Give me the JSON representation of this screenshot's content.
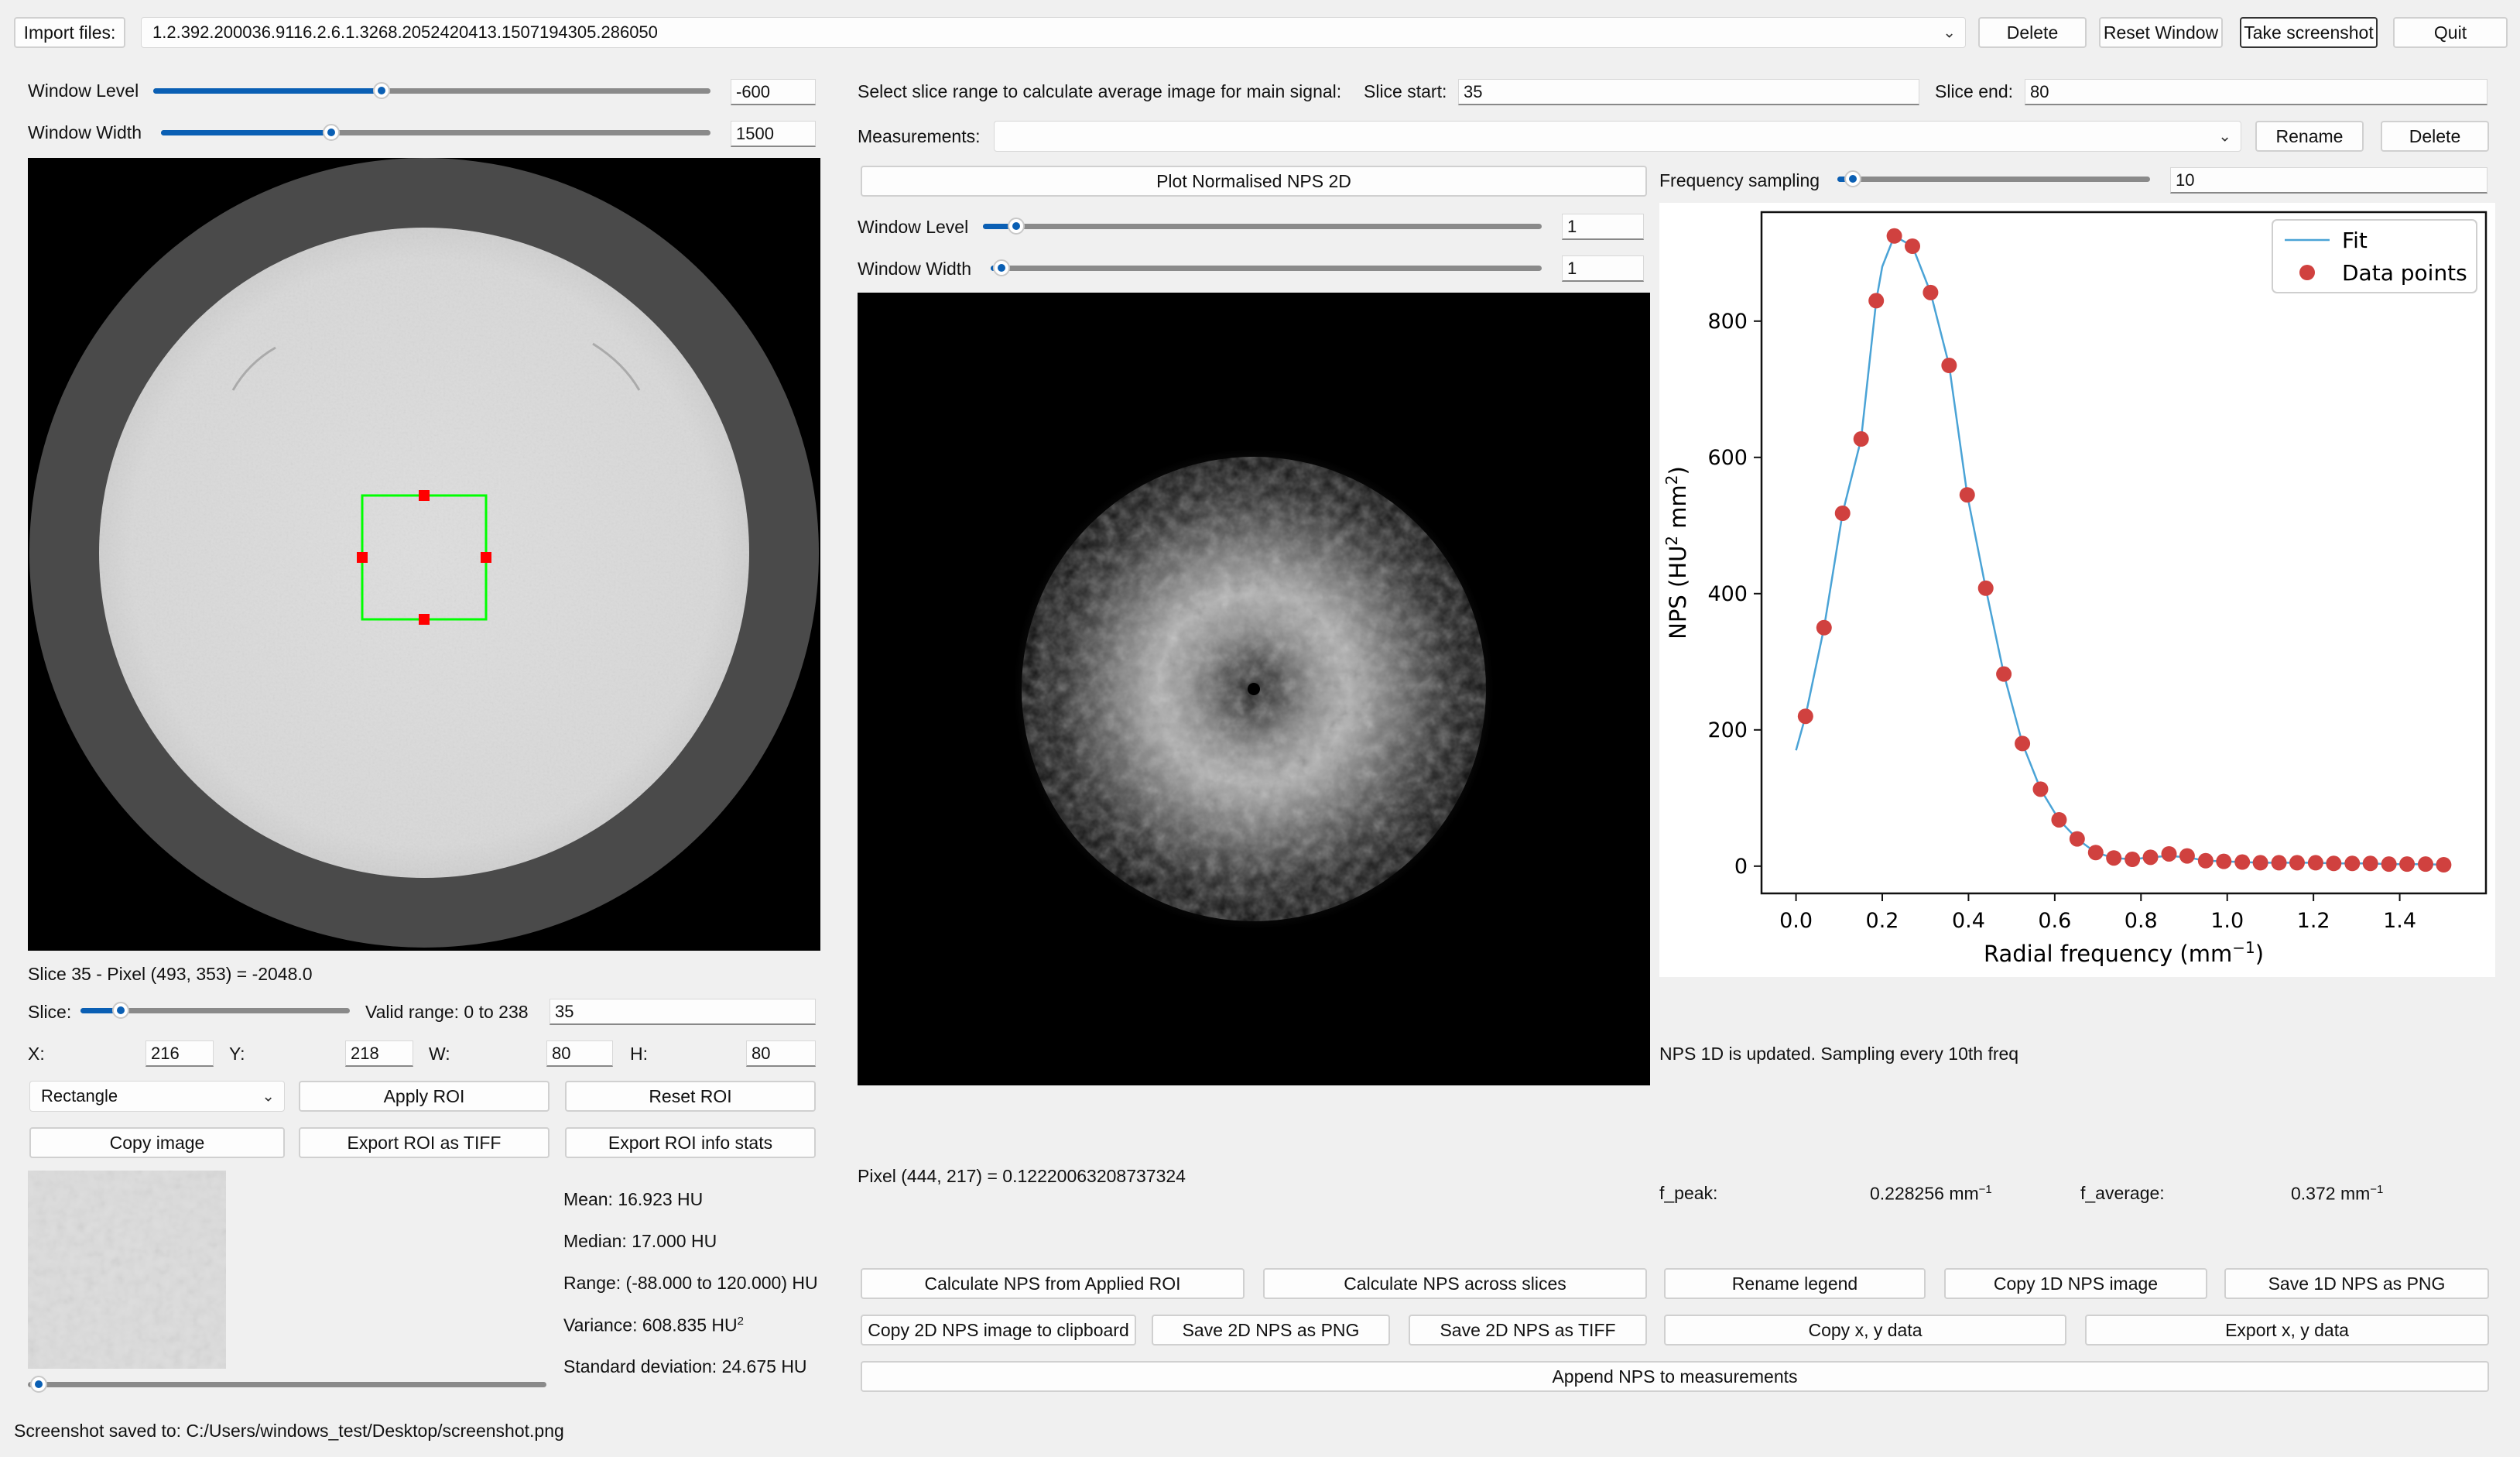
{
  "import": {
    "label": "Import files:",
    "file_value": "1.2.392.200036.9116.2.6.1.3268.2052420413.1507194305.286050"
  },
  "top_buttons": {
    "delete": "Delete",
    "reset_window": "Reset Window",
    "take_screenshot": "Take screenshot",
    "quit": "Quit"
  },
  "left": {
    "window_level_label": "Window Level",
    "window_level_value": "-600",
    "window_level_fraction": 0.41,
    "window_width_label": "Window Width",
    "window_width_value": "1500",
    "window_width_fraction": 0.31,
    "pixel_info": "Slice 35 - Pixel (493, 353) = -2048.0",
    "slice_label": "Slice:",
    "slice_fraction": 0.15,
    "valid_range": "Valid range: 0 to 238",
    "slice_value": "35",
    "x_label": "X:",
    "x_value": "216",
    "y_label": "Y:",
    "y_value": "218",
    "w_label": "W:",
    "w_value": "80",
    "h_label": "H:",
    "h_value": "80",
    "roi_shape": "Rectangle",
    "apply_roi": "Apply ROI",
    "reset_roi": "Reset ROI",
    "copy_image": "Copy image",
    "export_roi_tiff": "Export ROI as TIFF",
    "export_roi_info": "Export ROI info  stats",
    "stats": {
      "mean": "Mean: 16.923 HU",
      "median": "Median: 17.000 HU",
      "range": "Range: (-88.000 to 120.000) HU",
      "variance": "Variance: 608.835 HU",
      "variance_sup": "2",
      "std": "Standard deviation: 24.675 HU"
    }
  },
  "middle": {
    "slice_range_label": "Select slice range to calculate average image for main signal:",
    "slice_start_label": "Slice start:",
    "slice_start_value": "35",
    "slice_end_label": "Slice end:",
    "slice_end_value": "80",
    "measurements_label": "Measurements:",
    "measurements_value": "",
    "rename": "Rename",
    "delete": "Delete",
    "plot_nps_2d": "Plot Normalised NPS 2D",
    "window_level_label": "Window Level",
    "window_level_value": "1",
    "window_level_fraction": 0.06,
    "window_width_label": "Window Width",
    "window_width_value": "1",
    "window_width_fraction": 0.02,
    "pixel_info": "Pixel (444, 217) = 0.12220063208737324"
  },
  "right": {
    "frequency_sampling_label": "Frequency sampling",
    "frequency_sampling_value": "10",
    "frequency_sampling_fraction": 0.05,
    "status": "NPS 1D is updated. Sampling every 10th freq",
    "f_peak_label": "f_peak:",
    "f_peak_value": "0.228256 mm",
    "f_average_label": "f_average:",
    "f_average_value": "0.372 mm",
    "unit_sup": "−1"
  },
  "bottom_buttons": {
    "calc_applied_roi": "Calculate NPS from Applied ROI",
    "calc_across_slices": "Calculate NPS across slices",
    "rename_legend": "Rename legend",
    "copy_1d_image": "Copy 1D NPS image",
    "save_1d_png": "Save 1D NPS as PNG",
    "copy_2d_clipboard": "Copy 2D NPS image to clipboard",
    "save_2d_png": "Save 2D NPS as PNG",
    "save_2d_tiff": "Save 2D NPS as TIFF",
    "copy_xy": "Copy x, y data",
    "export_xy": "Export x, y data",
    "append_nps": "Append NPS to measurements"
  },
  "status_bar": "Screenshot saved to: C:/Users/windows_test/Desktop/screenshot.png",
  "colors": {
    "accent": "#0a5fb4",
    "fit_line": "#4aa3d6",
    "data_points": "#d0413f",
    "roi_box": "#00ff00",
    "roi_handles": "#ff0000"
  },
  "chart_data": {
    "type": "line",
    "xlabel_main": "Radial frequency (mm",
    "xlabel_sup": "−1",
    "xlabel_end": ")",
    "ylabel_main": "NPS (HU",
    "ylabel_sup": "2",
    "ylabel_mid": " mm",
    "ylabel_sup2": "2",
    "ylabel_end": ")",
    "xlim": [
      -0.08,
      1.6
    ],
    "ylim": [
      -40,
      960
    ],
    "xticks": [
      0.0,
      0.2,
      0.4,
      0.6,
      0.8,
      1.0,
      1.2,
      1.4
    ],
    "xtick_labels": [
      "0.0",
      "0.2",
      "0.4",
      "0.6",
      "0.8",
      "1.0",
      "1.2",
      "1.4"
    ],
    "yticks": [
      0,
      200,
      400,
      600,
      800
    ],
    "ytick_labels": [
      "0",
      "200",
      "400",
      "600",
      "800"
    ],
    "legend_position": "top-right",
    "series": [
      {
        "name": "Fit",
        "kind": "line",
        "x": [
          0.0,
          0.022,
          0.065,
          0.108,
          0.151,
          0.186,
          0.2,
          0.228,
          0.27,
          0.312,
          0.355,
          0.397,
          0.44,
          0.482,
          0.525,
          0.567,
          0.61,
          0.652,
          0.695,
          0.737,
          0.78,
          0.822,
          0.865,
          0.907,
          0.95,
          0.992,
          1.035,
          1.077,
          1.12,
          1.162,
          1.205,
          1.247,
          1.29,
          1.332,
          1.375,
          1.417,
          1.46,
          1.502
        ],
        "y": [
          170,
          220,
          350,
          518,
          627,
          830,
          880,
          925,
          910,
          842,
          735,
          545,
          408,
          282,
          180,
          113,
          68,
          40,
          20,
          12,
          10,
          13,
          15,
          13,
          8,
          7,
          6,
          5,
          5,
          5,
          5,
          4,
          4,
          4,
          3,
          3,
          3,
          2
        ]
      },
      {
        "name": "Data points",
        "kind": "scatter",
        "x": [
          0.022,
          0.065,
          0.108,
          0.151,
          0.186,
          0.228,
          0.27,
          0.312,
          0.355,
          0.397,
          0.44,
          0.482,
          0.525,
          0.567,
          0.61,
          0.652,
          0.695,
          0.737,
          0.78,
          0.822,
          0.865,
          0.907,
          0.95,
          0.992,
          1.035,
          1.077,
          1.12,
          1.162,
          1.205,
          1.247,
          1.29,
          1.332,
          1.375,
          1.417,
          1.46,
          1.502
        ],
        "y": [
          220,
          350,
          518,
          627,
          830,
          925,
          910,
          842,
          735,
          545,
          408,
          282,
          180,
          113,
          68,
          40,
          20,
          12,
          10,
          13,
          18,
          15,
          8,
          7,
          6,
          5,
          5,
          5,
          5,
          4,
          4,
          4,
          3,
          3,
          3,
          2
        ]
      }
    ]
  }
}
